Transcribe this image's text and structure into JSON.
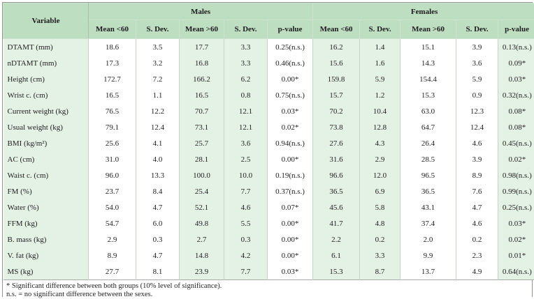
{
  "colors": {
    "header_green": "#bedec1",
    "cell_green": "#e4f1e5",
    "frame_border": "#8e968e",
    "inner_border": "#c2d4c3",
    "bottom_strip": "#cbe3cd"
  },
  "footnotes": [
    "* Significant difference between both groups (10% level of significance).",
    "n.s. = no significant difference between the sexes."
  ],
  "chart_data": {
    "type": "table",
    "title": "",
    "header": {
      "variable": "Variable",
      "groups": [
        "Males",
        "Females"
      ],
      "subcolumns": [
        "Mean <60",
        "S. Dev.",
        "Mean >60",
        "S. Dev.",
        "p-value"
      ]
    },
    "rows": [
      {
        "variable": "DTAMT (mm)",
        "values": [
          "18.6",
          "3.5",
          "17.7",
          "3.3",
          "0.25(n.s.)",
          "16.2",
          "1.4",
          "15.1",
          "3.9",
          "0.13(n.s.)"
        ]
      },
      {
        "variable": "nDTAMT (mm)",
        "values": [
          "17.3",
          "3.2",
          "16.8",
          "3.3",
          "0.46(n.s.)",
          "15.6",
          "1.6",
          "14.3",
          "3.6",
          "0.09*"
        ]
      },
      {
        "variable": "Height (cm)",
        "values": [
          "172.7",
          "7.2",
          "166.2",
          "6.2",
          "0.00*",
          "159.8",
          "5.9",
          "154.4",
          "5.9",
          "0.03*"
        ]
      },
      {
        "variable": "Wrist c. (cm)",
        "values": [
          "16.5",
          "1.1",
          "16.5",
          "0.8",
          "0.75(n.s.)",
          "15.7",
          "1.2",
          "15.3",
          "0.9",
          "0.32(n.s.)"
        ]
      },
      {
        "variable": "Current weight (kg)",
        "values": [
          "76.5",
          "12.2",
          "70.7",
          "12.1",
          "0.03*",
          "70.2",
          "10.4",
          "63.0",
          "12.3",
          "0.08*"
        ]
      },
      {
        "variable": "Usual weight (kg)",
        "values": [
          "79.1",
          "12.4",
          "73.1",
          "12.1",
          "0.02*",
          "73.8",
          "12.8",
          "64.7",
          "12.4",
          "0.08*"
        ]
      },
      {
        "variable": "BMI (kg/m²)",
        "values": [
          "25.6",
          "4.1",
          "25.7",
          "3.6",
          "0.94(n.s.)",
          "27.6",
          "4.3",
          "26.4",
          "4.6",
          "0.45(n.s.)"
        ]
      },
      {
        "variable": "AC (cm)",
        "values": [
          "31.0",
          "4.0",
          "28.1",
          "2.5",
          "0.00*",
          "31.6",
          "2.9",
          "28.5",
          "3.9",
          "0.02*"
        ]
      },
      {
        "variable": "Waist c. (cm)",
        "values": [
          "96.0",
          "13.3",
          "100.0",
          "10.0",
          "0.19(n.s.)",
          "96.6",
          "12.0",
          "96.5",
          "8.9",
          "0.98(n.s.)"
        ]
      },
      {
        "variable": "FM (%)",
        "values": [
          "23.7",
          "8.4",
          "25.4",
          "7.7",
          "0.37(n.s.)",
          "36.5",
          "6.9",
          "36.5",
          "7.6",
          "0.99(n.s.)"
        ]
      },
      {
        "variable": "Water (%)",
        "values": [
          "54.0",
          "4.7",
          "52.1",
          "4.6",
          "0.07*",
          "45.6",
          "5.8",
          "43.1",
          "4.7",
          "0.25(n.s.)"
        ]
      },
      {
        "variable": "FFM (kg)",
        "values": [
          "54.7",
          "6.0",
          "49.8",
          "5.5",
          "0.00*",
          "41.7",
          "4.8",
          "37.4",
          "4.6",
          "0.03*"
        ]
      },
      {
        "variable": "B. mass (kg)",
        "values": [
          "2.9",
          "0.3",
          "2.7",
          "0.3",
          "0.00*",
          "2.2",
          "0.2",
          "2.0",
          "0.2",
          "0.02*"
        ]
      },
      {
        "variable": "V. fat (kg)",
        "values": [
          "8.9",
          "4.7",
          "14.8",
          "4.2",
          "0.00*",
          "6.1",
          "3.3",
          "9.9",
          "2.3",
          "0.01*"
        ]
      },
      {
        "variable": "MS (kg)",
        "values": [
          "27.7",
          "8.1",
          "23.9",
          "7.7",
          "0.03*",
          "15.3",
          "8.7",
          "13.7",
          "4.9",
          "0.64(n.s.)"
        ]
      }
    ]
  }
}
